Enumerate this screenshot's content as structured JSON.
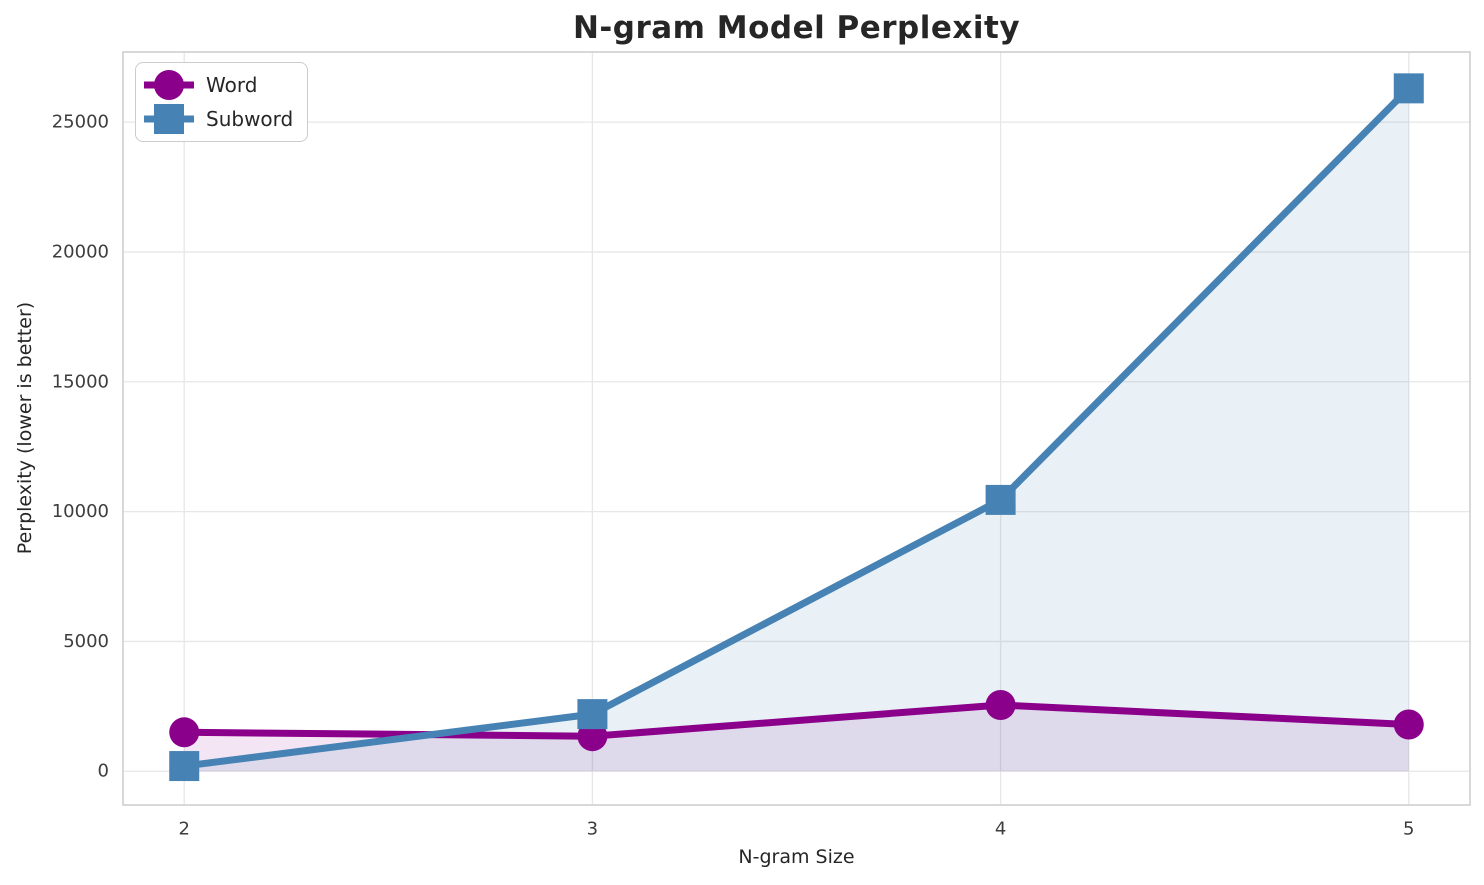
{
  "chart_data": {
    "type": "line",
    "title": "N-gram Model Perplexity",
    "xlabel": "N-gram Size",
    "ylabel": "Perplexity (lower is better)",
    "x": [
      2,
      3,
      4,
      5
    ],
    "series": [
      {
        "name": "Word",
        "values": [
          1500,
          1350,
          2550,
          1800
        ],
        "color": "#8B008B",
        "marker": "circle",
        "fill_alpha": 0.1
      },
      {
        "name": "Subword",
        "values": [
          200,
          2200,
          10450,
          26300
        ],
        "color": "#4682B4",
        "marker": "square",
        "fill_alpha": 0.12
      }
    ],
    "area_fill_baseline": 0,
    "xlim": [
      1.85,
      5.15
    ],
    "ylim": [
      -1300,
      27700
    ],
    "xticks": [
      2,
      3,
      4,
      5
    ],
    "yticks": [
      0,
      5000,
      10000,
      15000,
      20000,
      25000
    ],
    "grid": true,
    "legend_position": "upper left",
    "line_width": 7,
    "marker_size": 30
  },
  "colors": {
    "grid": "#E7E7E7",
    "spine": "#CCCCCC",
    "tick_text": "#3D3D3D",
    "text": "#262626",
    "background": "#FFFFFF"
  }
}
